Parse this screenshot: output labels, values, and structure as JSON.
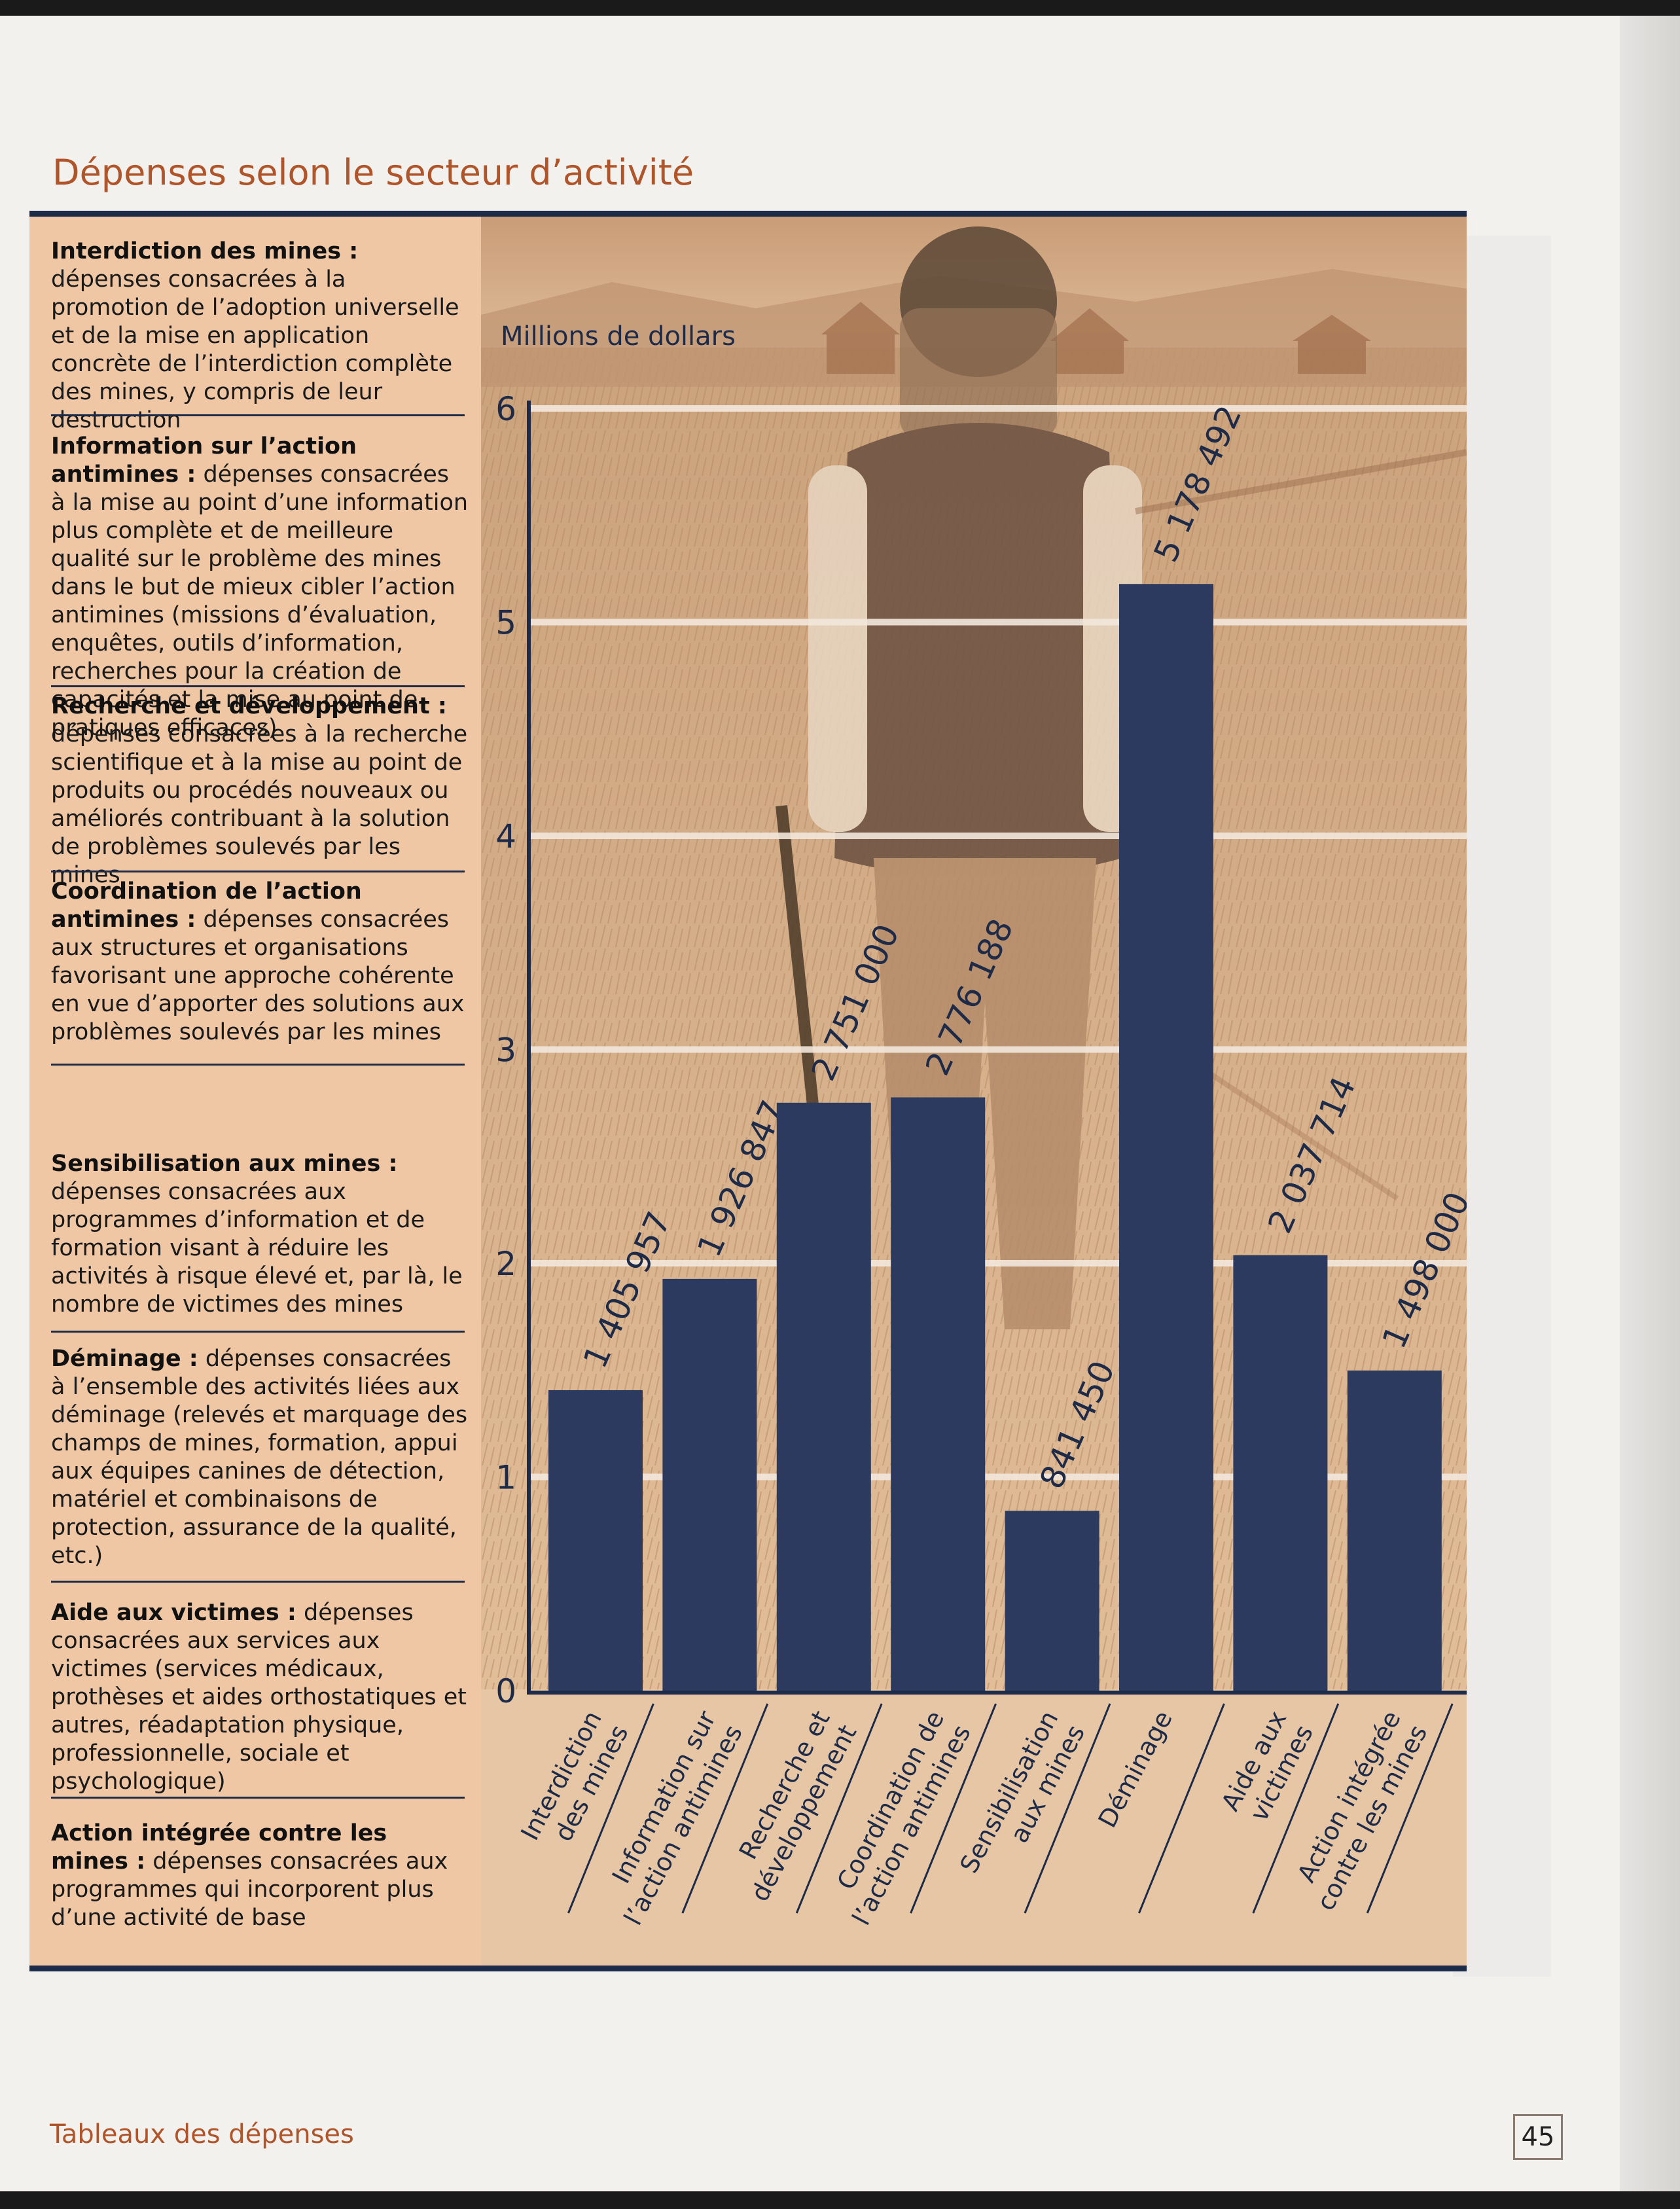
{
  "page": {
    "title": "Dépenses selon le secteur d’activité",
    "footer": "Tableaux des dépenses",
    "page_number": "45"
  },
  "definitions": [
    {
      "term": "Interdiction des mines :",
      "text": "dépenses consacrées à la promotion de l’adoption universelle et de la mise en application concrète de l’interdiction complète des mines, y compris de leur destruction"
    },
    {
      "term": "Information sur l’action antimines :",
      "text": "dépenses consacrées à la mise au point d’une information plus complète et de meilleure qualité sur le problème des mines dans le but de mieux cibler l’action antimines (missions d’évaluation, enquêtes, outils d’information, recherches pour la création de capacités et la mise au point de pratiques efficaces)"
    },
    {
      "term": "Recherche et développement :",
      "text": "dépenses consacrées à la recherche scientifique et à la mise au point de produits ou procédés nouveaux ou améliorés contribuant à la solution de problèmes soulevés par les mines"
    },
    {
      "term": "Coordination de l’action antimines :",
      "text": "dépenses consacrées aux structures et organisations favorisant une approche cohérente en vue d’apporter des solutions aux problèmes soulevés par les mines"
    },
    {
      "term": "Sensibilisation aux mines :",
      "text": "dépenses consacrées aux programmes d’information et de formation visant à réduire les activités à risque élevé et, par là, le nombre de victimes des mines"
    },
    {
      "term": "Déminage :",
      "text": "dépenses consacrées à l’ensemble des activités liées aux déminage (relevés et marquage des champs de mines, formation, appui aux équipes canines de détection, matériel et combinaisons de protection, assurance de la qualité, etc.)"
    },
    {
      "term": "Aide aux victimes :",
      "text": "dépenses consacrées aux services aux victimes (services médicaux, prothèses et aides orthostatiques et autres, réadaptation physique, professionnelle, sociale et psychologique)"
    },
    {
      "term": "Action intégrée contre les mines :",
      "text": "dépenses consacrées aux programmes qui incorporent plus d’une activité de base"
    }
  ],
  "chart_data": {
    "type": "bar",
    "title": "",
    "ylabel": "Millions de dollars",
    "xlabel": "",
    "ylim": [
      0,
      6
    ],
    "yticks": [
      "0",
      "1",
      "2",
      "3",
      "4",
      "5",
      "6"
    ],
    "grid": true,
    "categories": [
      [
        "Interdiction",
        "des mines"
      ],
      [
        "Information sur",
        "l’action antimines"
      ],
      [
        "Recherche et",
        "développement"
      ],
      [
        "Coordination de",
        "l’action antimines"
      ],
      [
        "Sensibilisation",
        "aux mines"
      ],
      [
        "Déminage"
      ],
      [
        "Aide aux",
        "victimes"
      ],
      [
        "Action intégrée",
        "contre les mines"
      ]
    ],
    "values": [
      1405957,
      1926847,
      2751000,
      2776188,
      841450,
      5178492,
      2037714,
      1498000
    ],
    "value_labels": [
      "1 405 957",
      "1 926 847",
      "2 751 000",
      "2 776 188",
      "841 450",
      "5 178 492",
      "2 037 714",
      "1 498 000"
    ],
    "colors": {
      "bar": "#2b3a5e",
      "axis": "#1d2a48",
      "grid": "#f2e7dc"
    }
  }
}
